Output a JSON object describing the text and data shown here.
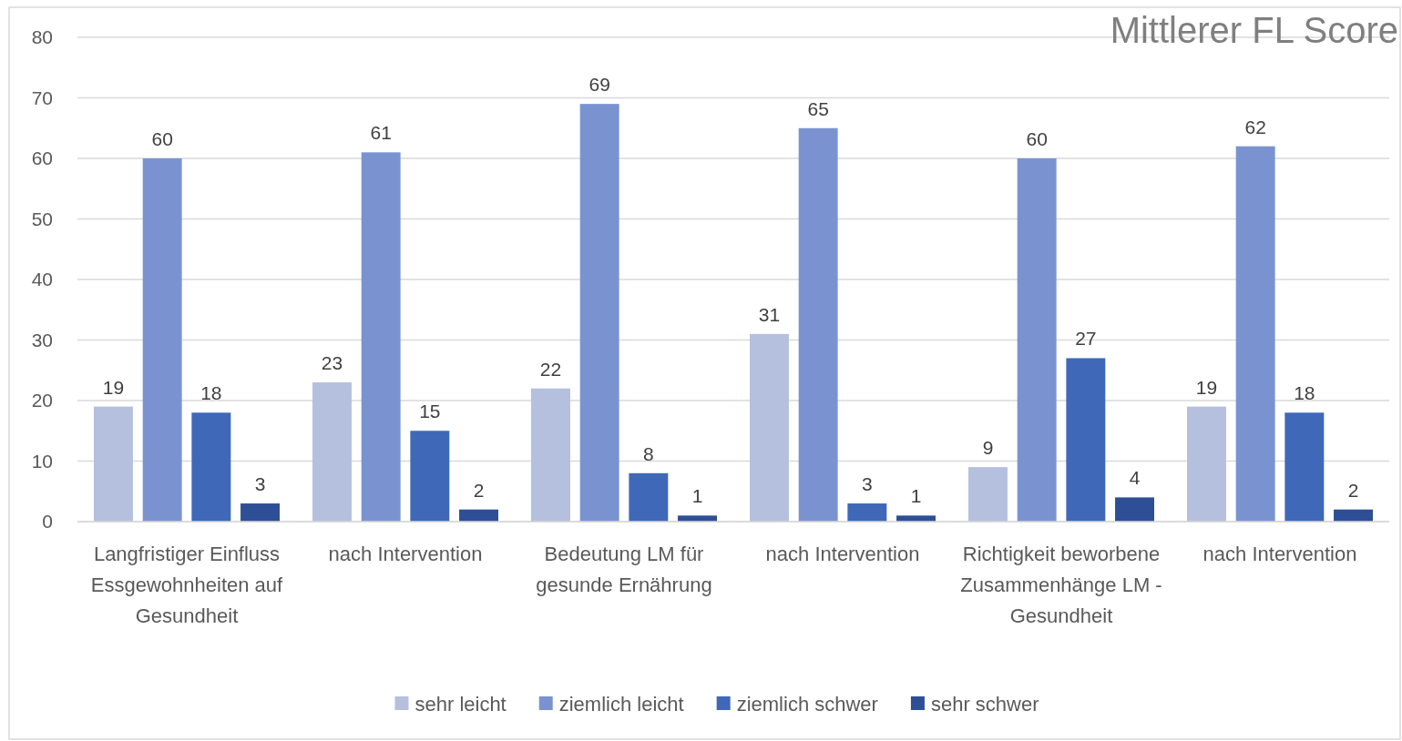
{
  "chart_data": {
    "type": "bar",
    "title": "Mittlerer FL Score",
    "categories": [
      "Langfristiger Einfluss Essgewohnheiten auf Gesundheit",
      "nach Intervention",
      "Bedeutung LM für gesunde Ernährung",
      "nach Intervention",
      "Richtigkeit beworbene Zusammenhänge LM - Gesundheit",
      "nach Intervention"
    ],
    "series": [
      {
        "name": "sehr leicht",
        "color": "#b4c0de",
        "values": [
          19,
          23,
          22,
          31,
          9,
          19
        ]
      },
      {
        "name": "ziemlich leicht",
        "color": "#7a93d0",
        "values": [
          60,
          61,
          69,
          65,
          60,
          62
        ]
      },
      {
        "name": "ziemlich schwer",
        "color": "#3f68b8",
        "values": [
          18,
          15,
          8,
          3,
          27,
          18
        ]
      },
      {
        "name": "sehr schwer",
        "color": "#2e4f96",
        "values": [
          3,
          2,
          1,
          1,
          4,
          2
        ]
      }
    ],
    "ylim": [
      0,
      80
    ],
    "yticks": [
      0,
      10,
      20,
      30,
      40,
      50,
      60,
      70,
      80
    ],
    "grid": "y",
    "legend": "bottom",
    "data_labels": true
  }
}
